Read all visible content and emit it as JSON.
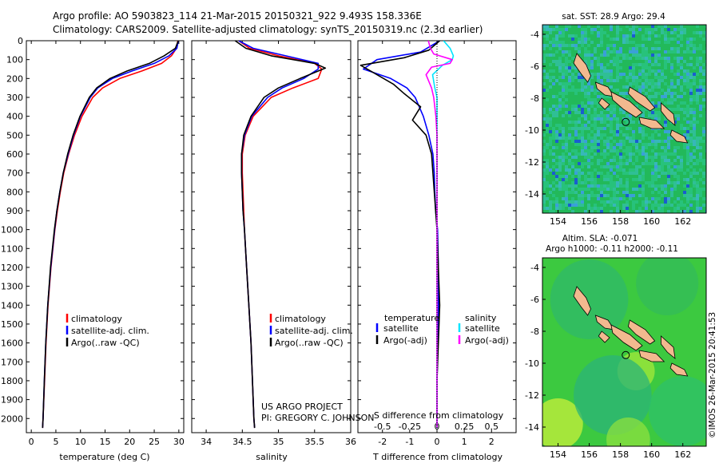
{
  "header": {
    "line1": "Argo profile: AO 5903823_114 21-Mar-2015 20150321_922 9.493S 158.336E",
    "line2": "Climatology: CARS2009. Satellite-adjusted climatology: synTS_20150319.nc (2.3d earlier)"
  },
  "credits": {
    "project": "US ARGO PROJECT",
    "pi": "PI: GREGORY C. JOHNSON",
    "imos": "©IMOS 26-Mar-2015 20:41:53"
  },
  "colors": {
    "climatology": "#ff0000",
    "satellite": "#0000ff",
    "argo": "#000000",
    "sal_satellite": "#00e5ff",
    "sal_argo": "#ff00ff"
  },
  "chart_data": [
    {
      "type": "line",
      "id": "temperature",
      "xlabel": "temperature (deg C)",
      "ylabel": "",
      "xlim": [
        -1,
        31
      ],
      "ylim": [
        2075,
        0
      ],
      "xticks": [
        "0",
        "5",
        "10",
        "15",
        "20",
        "25",
        "30"
      ],
      "xtick_values": [
        0,
        5,
        10,
        15,
        20,
        25,
        30
      ],
      "yticks": [
        "0",
        "100",
        "200",
        "300",
        "400",
        "500",
        "600",
        "700",
        "800",
        "900",
        "1000",
        "1100",
        "1200",
        "1300",
        "1400",
        "1500",
        "1600",
        "1700",
        "1800",
        "1900",
        "2000"
      ],
      "ytick_values": [
        0,
        100,
        200,
        300,
        400,
        500,
        600,
        700,
        800,
        900,
        1000,
        1100,
        1200,
        1300,
        1400,
        1500,
        1600,
        1700,
        1800,
        1900,
        2000
      ],
      "legend": [
        "climatology",
        "satellite-adj. clim.",
        "Argo(..raw -QC)"
      ],
      "series": [
        {
          "name": "climatology",
          "color": "#ff0000",
          "depth": [
            0,
            40,
            80,
            120,
            160,
            200,
            250,
            300,
            400,
            500,
            600,
            700,
            800,
            900,
            1000,
            1200,
            1400,
            1600,
            1800,
            2000,
            2050
          ],
          "values": [
            29.8,
            29.5,
            28.5,
            26.5,
            22.5,
            18,
            14.5,
            12.5,
            10.3,
            8.8,
            7.6,
            6.6,
            5.9,
            5.3,
            4.8,
            4.0,
            3.4,
            3.0,
            2.7,
            2.4,
            2.3
          ]
        },
        {
          "name": "satellite-adj. clim.",
          "color": "#0000ff",
          "depth": [
            0,
            40,
            80,
            120,
            160,
            200,
            250,
            300,
            400,
            500,
            600,
            700,
            800,
            900,
            1000,
            1200,
            1400,
            1600,
            1800,
            2000,
            2050
          ],
          "values": [
            29.9,
            29.6,
            28,
            25,
            20.5,
            16.5,
            13.5,
            12,
            10,
            8.6,
            7.5,
            6.5,
            5.8,
            5.2,
            4.75,
            3.95,
            3.35,
            2.95,
            2.65,
            2.4,
            2.3
          ]
        },
        {
          "name": "Argo(..raw -QC)",
          "color": "#000000",
          "depth": [
            0,
            40,
            80,
            120,
            160,
            200,
            250,
            300,
            400,
            500,
            600,
            700,
            800,
            900,
            1000,
            1200,
            1400,
            1600,
            1800,
            2000,
            2050
          ],
          "values": [
            29.9,
            29.3,
            27,
            24,
            19.5,
            16,
            13.3,
            11.8,
            9.9,
            8.5,
            7.4,
            6.5,
            5.8,
            5.2,
            4.7,
            3.9,
            3.35,
            2.95,
            2.65,
            2.4,
            2.3
          ]
        }
      ]
    },
    {
      "type": "line",
      "id": "salinity",
      "xlabel": "salinity",
      "ylabel": "",
      "xlim": [
        33.8,
        36.0
      ],
      "ylim": [
        2075,
        0
      ],
      "xticks": [
        "34",
        "34.5",
        "35",
        "35.5",
        "36"
      ],
      "xtick_values": [
        34,
        34.5,
        35,
        35.5,
        36
      ],
      "legend": [
        "climatology",
        "satellite-adj. clim.",
        "Argo(..raw -QC)"
      ],
      "series": [
        {
          "name": "climatology",
          "color": "#ff0000",
          "depth": [
            0,
            40,
            80,
            120,
            150,
            200,
            250,
            300,
            400,
            500,
            600,
            700,
            800,
            900,
            1000,
            1200,
            1400,
            1600,
            1800,
            2000,
            2050
          ],
          "values": [
            34.45,
            34.6,
            35.0,
            35.5,
            35.6,
            35.55,
            35.2,
            34.9,
            34.65,
            34.54,
            34.5,
            34.5,
            34.51,
            34.52,
            34.53,
            34.56,
            34.59,
            34.62,
            34.64,
            34.66,
            34.67
          ]
        },
        {
          "name": "satellite-adj. clim.",
          "color": "#0000ff",
          "depth": [
            0,
            40,
            80,
            120,
            150,
            200,
            250,
            300,
            400,
            500,
            600,
            700,
            800,
            900,
            1000,
            1200,
            1400,
            1600,
            1800,
            2000,
            2050
          ],
          "values": [
            34.45,
            34.65,
            35.1,
            35.55,
            35.55,
            35.35,
            35.05,
            34.85,
            34.63,
            34.53,
            34.49,
            34.49,
            34.5,
            34.51,
            34.53,
            34.56,
            34.59,
            34.62,
            34.64,
            34.66,
            34.67
          ]
        },
        {
          "name": "Argo(..raw -QC)",
          "color": "#000000",
          "depth": [
            0,
            40,
            80,
            120,
            145,
            200,
            250,
            300,
            400,
            500,
            600,
            700,
            800,
            900,
            1000,
            1200,
            1400,
            1600,
            1800,
            2000,
            2050
          ],
          "values": [
            34.4,
            34.55,
            34.9,
            35.5,
            35.65,
            35.3,
            35.0,
            34.8,
            34.62,
            34.52,
            34.49,
            34.49,
            34.5,
            34.51,
            34.53,
            34.56,
            34.59,
            34.62,
            34.64,
            34.66,
            34.67
          ]
        }
      ]
    },
    {
      "type": "line",
      "id": "difference",
      "xlabel": "T difference from climatology",
      "xlabel_top": "S difference from climatology",
      "xlim": [
        -2.9,
        2.9
      ],
      "ylim": [
        2075,
        0
      ],
      "xticks": [
        "-2",
        "-1",
        "0",
        "1",
        "2"
      ],
      "xtick_values": [
        -2,
        -1,
        0,
        1,
        2
      ],
      "sticks": [
        "-0.5",
        "-0.25",
        "0",
        "0.25",
        "0.5"
      ],
      "stick_values": [
        -0.5,
        -0.25,
        0,
        0.25,
        0.5
      ],
      "legend_headers": [
        "temperature",
        "salinity"
      ],
      "legend": [
        "satellite",
        "Argo(-adj)",
        "satellite",
        "Argo(-adj)"
      ],
      "series": [
        {
          "name": "T satellite",
          "color": "#0000ff",
          "depth": [
            0,
            60,
            100,
            150,
            200,
            250,
            300,
            400,
            500,
            600,
            700,
            800,
            900,
            1000,
            1200,
            1400,
            1600,
            1800,
            2000,
            2050
          ],
          "values": [
            0.1,
            -0.6,
            -2.2,
            -2.7,
            -1.7,
            -1.1,
            -0.8,
            -0.5,
            -0.3,
            -0.15,
            -0.1,
            -0.08,
            -0.05,
            0.02,
            0.05,
            0.05,
            0.03,
            0.0,
            0.0,
            0.0
          ]
        },
        {
          "name": "T Argo(-adj)",
          "color": "#000000",
          "depth": [
            0,
            50,
            90,
            130,
            180,
            230,
            280,
            350,
            420,
            500,
            600,
            700,
            800,
            900,
            1000,
            1200,
            1400,
            1600,
            1800,
            2000,
            2050
          ],
          "values": [
            0.1,
            -0.3,
            -1.2,
            -2.8,
            -2.2,
            -1.6,
            -1.2,
            -0.6,
            -0.9,
            -0.4,
            -0.2,
            -0.15,
            -0.1,
            -0.05,
            0.0,
            0.05,
            0.1,
            0.05,
            0.0,
            0.0,
            0.0
          ]
        },
        {
          "name": "S satellite",
          "color": "#00e5ff",
          "depth": [
            0,
            40,
            80,
            100,
            130,
            180,
            250,
            300,
            400,
            500,
            600,
            700,
            800,
            900,
            1000,
            1200,
            1400,
            1600,
            1800,
            2000,
            2050
          ],
          "values": [
            0.06,
            0.12,
            0.15,
            0.14,
            0.05,
            -0.04,
            -0.02,
            0.0,
            0.0,
            0.0,
            0.0,
            0.0,
            0.0,
            0.0,
            0.0,
            0.0,
            0.0,
            0.0,
            0.0,
            0.0,
            0.0
          ]
        },
        {
          "name": "S Argo(-adj)",
          "color": "#ff00ff",
          "depth": [
            0,
            40,
            70,
            100,
            120,
            140,
            180,
            250,
            300,
            400,
            500,
            600,
            700,
            800,
            900,
            1000,
            1200,
            1400,
            1600,
            1800,
            2000,
            2050
          ],
          "values": [
            -0.08,
            -0.06,
            -0.03,
            0.14,
            0.12,
            -0.05,
            -0.1,
            -0.05,
            -0.03,
            -0.01,
            0.0,
            0.0,
            0.0,
            0.0,
            0.0,
            0.0,
            0.0,
            0.0,
            0.0,
            0.0,
            0.0,
            0.0
          ]
        }
      ]
    },
    {
      "type": "heatmap",
      "id": "sst-map",
      "title": "sat. SST: 28.9 Argo: 29.4",
      "xlim": [
        153,
        163.5
      ],
      "ylim": [
        -15.2,
        -3.4
      ],
      "xticks": [
        "154",
        "156",
        "158",
        "160",
        "162"
      ],
      "xtick_values": [
        154,
        156,
        158,
        160,
        162
      ],
      "yticks": [
        "-4",
        "-6",
        "-8",
        "-10",
        "-12",
        "-14"
      ],
      "ytick_values": [
        -4,
        -6,
        -8,
        -10,
        -12,
        -14
      ],
      "argo_position": [
        158.34,
        -9.49
      ]
    },
    {
      "type": "heatmap",
      "id": "sla-map",
      "title": "Altim. SLA: -0.071",
      "subtitle": "Argo h1000: -0.11 h2000: -0.11",
      "xlim": [
        153,
        163.5
      ],
      "ylim": [
        -15.2,
        -3.4
      ],
      "xticks": [
        "154",
        "156",
        "158",
        "160",
        "162"
      ],
      "xtick_values": [
        154,
        156,
        158,
        160,
        162
      ],
      "yticks": [
        "-4",
        "-6",
        "-8",
        "-10",
        "-12",
        "-14"
      ],
      "ytick_values": [
        -4,
        -6,
        -8,
        -10,
        -12,
        -14
      ],
      "argo_position": [
        158.34,
        -9.49
      ]
    }
  ]
}
